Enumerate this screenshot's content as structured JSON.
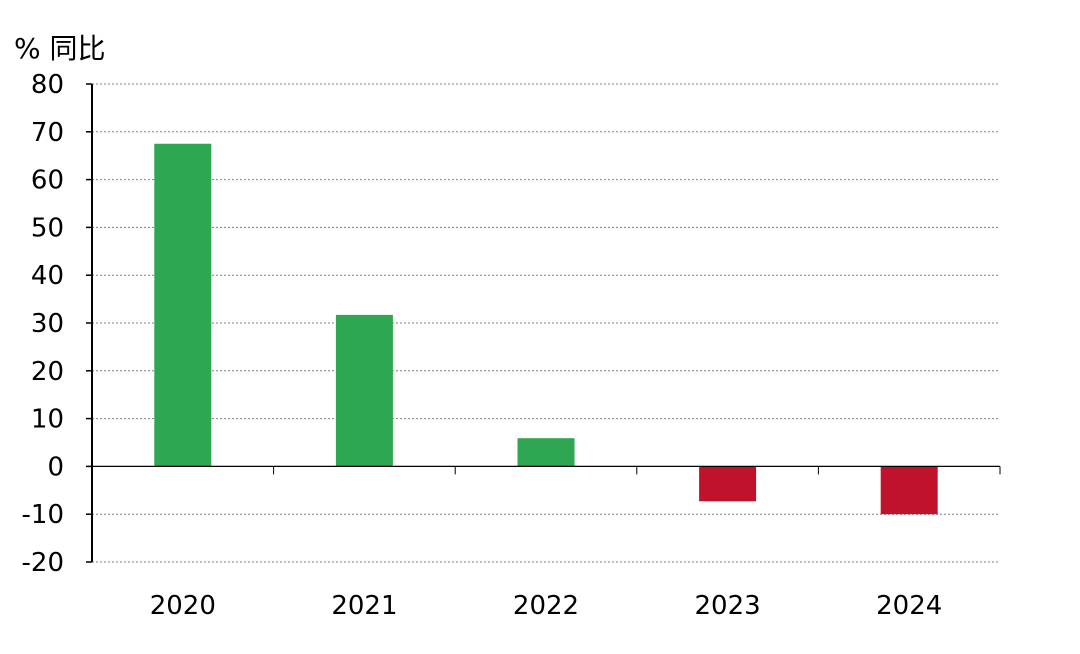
{
  "chart_data": {
    "type": "bar",
    "ylabel": "% 同比",
    "categories": [
      "2020",
      "2021",
      "2022",
      "2023",
      "2024"
    ],
    "values": [
      67.5,
      31.7,
      5.9,
      -7.3,
      -10.0
    ],
    "ylim": [
      -20,
      80
    ],
    "yticks": [
      80,
      70,
      60,
      50,
      40,
      30,
      20,
      10,
      0,
      -10,
      -20
    ],
    "grid": true,
    "colors": {
      "positive": "#2ea652",
      "negative": "#c0132b",
      "grid": "#808080",
      "axis": "#000000"
    }
  }
}
